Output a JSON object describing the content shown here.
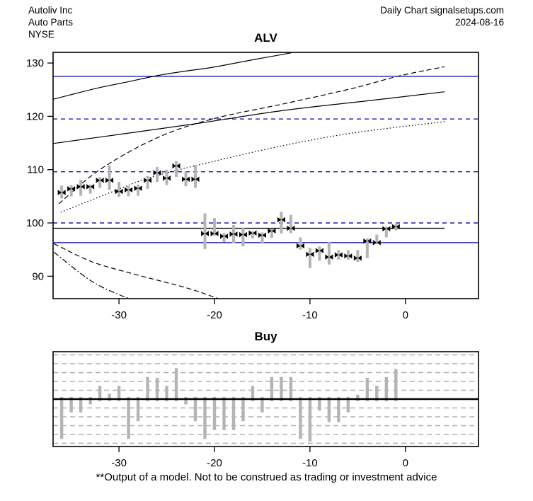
{
  "header": {
    "company": "Autoliv Inc",
    "industry": "Auto Parts",
    "exchange": "NYSE",
    "source": "Daily Chart signalsetups.com",
    "date": "2024-08-16"
  },
  "footer": {
    "disclaimer": "**Output of a model. Not to be construed as trading or investment advice"
  },
  "colors": {
    "line_blue": "#0000b4",
    "bar_gray": "#b4b4b4",
    "grid_gray": "#b0b0b0",
    "marker_black": "#000000",
    "curve_black": "#000000"
  },
  "chart_data": [
    {
      "type": "candlestick",
      "title": "ALV",
      "x_ticks": [
        -30,
        -20,
        -10,
        0
      ],
      "y_ticks": [
        90,
        100,
        110,
        120,
        130
      ],
      "xlim": [
        -36.9,
        7.65
      ],
      "ylim": [
        85.8,
        132.0
      ],
      "h_lines": [
        {
          "name": "resistance-solid-upper",
          "value": 127.5,
          "style": "solid",
          "color": "#0000b4"
        },
        {
          "name": "level-dashed-1",
          "value": 119.5,
          "style": "dashed",
          "color": "#0000b4"
        },
        {
          "name": "level-dashed-2",
          "value": 109.6,
          "style": "dashed",
          "color": "#0000b4"
        },
        {
          "name": "level-dashed-3",
          "value": 100.0,
          "style": "dashed",
          "color": "#0000b4"
        },
        {
          "name": "pivot-black",
          "value": 99.0,
          "style": "solid",
          "color": "#000000",
          "end_t": 4.1
        },
        {
          "name": "support-solid-lower",
          "value": 96.3,
          "style": "solid",
          "color": "#0000b4"
        }
      ],
      "curves": [
        {
          "name": "upper-trend-line",
          "style": "solid",
          "points": [
            [
              -36.9,
              123.2
            ],
            [
              -34.5,
              124.3
            ],
            [
              -32,
              125.4
            ],
            [
              -29,
              126.5
            ],
            [
              -26.1,
              127.6
            ],
            [
              -23,
              128.5
            ],
            [
              -20.2,
              129.2
            ],
            [
              -16,
              130.6
            ],
            [
              -12,
              131.9
            ]
          ]
        },
        {
          "name": "mid-trend-line",
          "style": "solid",
          "points": [
            [
              -36.9,
              114.9
            ],
            [
              -30,
              116.6
            ],
            [
              -22,
              118.6
            ],
            [
              -12.8,
              121.1
            ],
            [
              -4,
              122.9
            ],
            [
              4.1,
              124.6
            ]
          ]
        },
        {
          "name": "projection-dashed",
          "style": "dashed",
          "points": [
            [
              -36.3,
              103.6
            ],
            [
              -32,
              110.0
            ],
            [
              -26.1,
              115.9
            ],
            [
              -20.2,
              119.5
            ],
            [
              -12.6,
              122.4
            ],
            [
              -5.4,
              125.3
            ],
            [
              -0.6,
              127.6
            ],
            [
              4.1,
              129.3
            ]
          ]
        },
        {
          "name": "projection-dotted",
          "style": "dotted",
          "points": [
            [
              -36.1,
              102.0
            ],
            [
              -30.9,
              105.7
            ],
            [
              -26.6,
              108.6
            ],
            [
              -20.2,
              111.5
            ],
            [
              -12.8,
              114.5
            ],
            [
              -5.4,
              116.9
            ],
            [
              4.1,
              119.0
            ]
          ]
        },
        {
          "name": "lower-decay-dashed",
          "style": "dashed",
          "points": [
            [
              -36.8,
              96.1
            ],
            [
              -32.8,
              92.7
            ],
            [
              -28.4,
              90.4
            ],
            [
              -22.9,
              87.8
            ],
            [
              -19.6,
              85.8
            ]
          ]
        },
        {
          "name": "lower-decay-dashdot",
          "style": "dashdot",
          "points": [
            [
              -36.8,
              94.5
            ],
            [
              -32.9,
              89.1
            ],
            [
              -29.8,
              86.4
            ],
            [
              -28.8,
              85.8
            ]
          ]
        }
      ],
      "candles_columns": [
        "day_offset",
        "high",
        "low",
        "open_close"
      ],
      "candles": [
        [
          -36,
          107.0,
          104.6,
          105.7
        ],
        [
          -35,
          107.1,
          105.0,
          106.4
        ],
        [
          -34,
          108.1,
          105.1,
          106.8
        ],
        [
          -33,
          107.2,
          105.5,
          106.8
        ],
        [
          -32,
          108.6,
          106.6,
          108.0
        ],
        [
          -31,
          110.8,
          106.2,
          108.0
        ],
        [
          -30,
          107.7,
          104.9,
          105.9
        ],
        [
          -29,
          106.9,
          105.0,
          106.2
        ],
        [
          -28,
          107.2,
          105.1,
          106.5
        ],
        [
          -27,
          108.8,
          106.4,
          108.0
        ],
        [
          -26,
          110.5,
          107.7,
          109.4
        ],
        [
          -25,
          110.0,
          107.1,
          108.4
        ],
        [
          -24,
          111.6,
          108.6,
          110.7
        ],
        [
          -23,
          109.6,
          106.9,
          108.2
        ],
        [
          -22,
          110.9,
          106.6,
          108.2
        ],
        [
          -21,
          101.8,
          95.1,
          98.0
        ],
        [
          -20,
          100.9,
          97.6,
          98.0
        ],
        [
          -19,
          98.1,
          96.4,
          97.5
        ],
        [
          -18,
          99.6,
          96.2,
          97.9
        ],
        [
          -17,
          99.1,
          95.6,
          97.8
        ],
        [
          -16,
          98.4,
          97.1,
          98.1
        ],
        [
          -15,
          98.2,
          96.1,
          97.7
        ],
        [
          -14,
          98.9,
          97.2,
          98.5
        ],
        [
          -13,
          102.1,
          98.0,
          100.6
        ],
        [
          -12,
          101.5,
          98.1,
          99.0
        ],
        [
          -11,
          97.3,
          95.0,
          95.7
        ],
        [
          -10,
          95.3,
          91.5,
          94.1
        ],
        [
          -9,
          95.6,
          92.9,
          94.8
        ],
        [
          -8,
          96.4,
          92.2,
          93.6
        ],
        [
          -7,
          94.9,
          93.1,
          94.0
        ],
        [
          -6,
          94.9,
          93.1,
          93.8
        ],
        [
          -5,
          94.9,
          92.7,
          93.4
        ],
        [
          -4,
          97.1,
          93.4,
          96.6
        ],
        [
          -3,
          97.8,
          96.0,
          96.3
        ],
        [
          -2,
          99.3,
          97.3,
          98.9
        ],
        [
          -1,
          99.8,
          98.6,
          99.3
        ]
      ]
    },
    {
      "type": "bar",
      "title": "Buy",
      "x_ticks": [
        -30,
        -20,
        -10,
        0
      ],
      "xlim": [
        -36.9,
        7.65
      ],
      "ylim": [
        -5.36,
        5.36
      ],
      "gridline_values": [
        -5,
        -4,
        -3,
        -2,
        -1,
        1,
        2,
        3,
        4,
        5
      ],
      "values_columns": [
        "day_offset",
        "value"
      ],
      "values": [
        [
          -36,
          -4.5
        ],
        [
          -35,
          -1.5
        ],
        [
          -34,
          -1.5
        ],
        [
          -33,
          -0.6
        ],
        [
          -32,
          1.5
        ],
        [
          -31,
          0.6
        ],
        [
          -30,
          1.5
        ],
        [
          -29,
          -4.5
        ],
        [
          -28,
          -2.5
        ],
        [
          -27,
          2.5
        ],
        [
          -26,
          2.4
        ],
        [
          -25,
          1.5
        ],
        [
          -24,
          3.5
        ],
        [
          -23,
          -0.6
        ],
        [
          -22,
          -2.5
        ],
        [
          -21,
          -4.5
        ],
        [
          -20,
          -3.5
        ],
        [
          -19,
          -3.5
        ],
        [
          -18,
          -3.5
        ],
        [
          -17,
          -2.5
        ],
        [
          -16,
          1.5
        ],
        [
          -15,
          -1.5
        ],
        [
          -14,
          2.5
        ],
        [
          -13,
          2.5
        ],
        [
          -12,
          2.5
        ],
        [
          -11,
          -4.5
        ],
        [
          -10,
          -4.8
        ],
        [
          -9,
          -1.3
        ],
        [
          -8,
          -2.6
        ],
        [
          -7,
          -2.6
        ],
        [
          -6,
          -1.5
        ],
        [
          -5,
          0.5
        ],
        [
          -4,
          2.4
        ],
        [
          -3,
          1.5
        ],
        [
          -2,
          2.5
        ],
        [
          -1,
          3.4
        ]
      ]
    }
  ]
}
